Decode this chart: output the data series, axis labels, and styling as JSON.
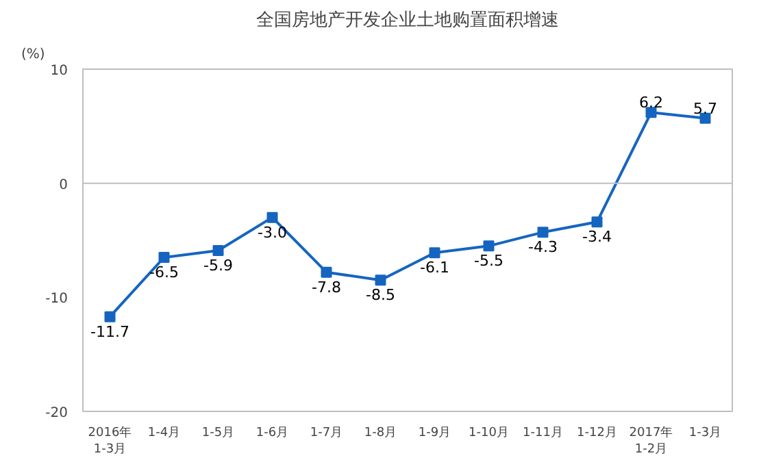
{
  "chart_data": {
    "type": "line",
    "title": "全国房地产开发企业土地购置面积增速",
    "ylabel": "(%)",
    "categories": [
      "2016年\n1-3月",
      "1-4月",
      "1-5月",
      "1-6月",
      "1-7月",
      "1-8月",
      "1-9月",
      "1-10月",
      "1-11月",
      "1-12月",
      "2017年\n1-2月",
      "1-3月"
    ],
    "series": [
      {
        "color": "#1565c0",
        "values": [
          -11.7,
          -6.5,
          -5.9,
          -3.0,
          -7.8,
          -8.5,
          -6.1,
          -5.5,
          -4.3,
          -3.4,
          6.2,
          5.7
        ]
      }
    ],
    "value_labels": [
      "-11.7",
      "-6.5",
      "-5.9",
      "-3.0",
      "-7.8",
      "-8.5",
      "-6.1",
      "-5.5",
      "-4.3",
      "-3.4",
      "6.2",
      "5.7"
    ],
    "ylim": [
      -20,
      10
    ],
    "yticks": [
      10,
      0,
      -10,
      -20
    ],
    "marker": "square"
  }
}
